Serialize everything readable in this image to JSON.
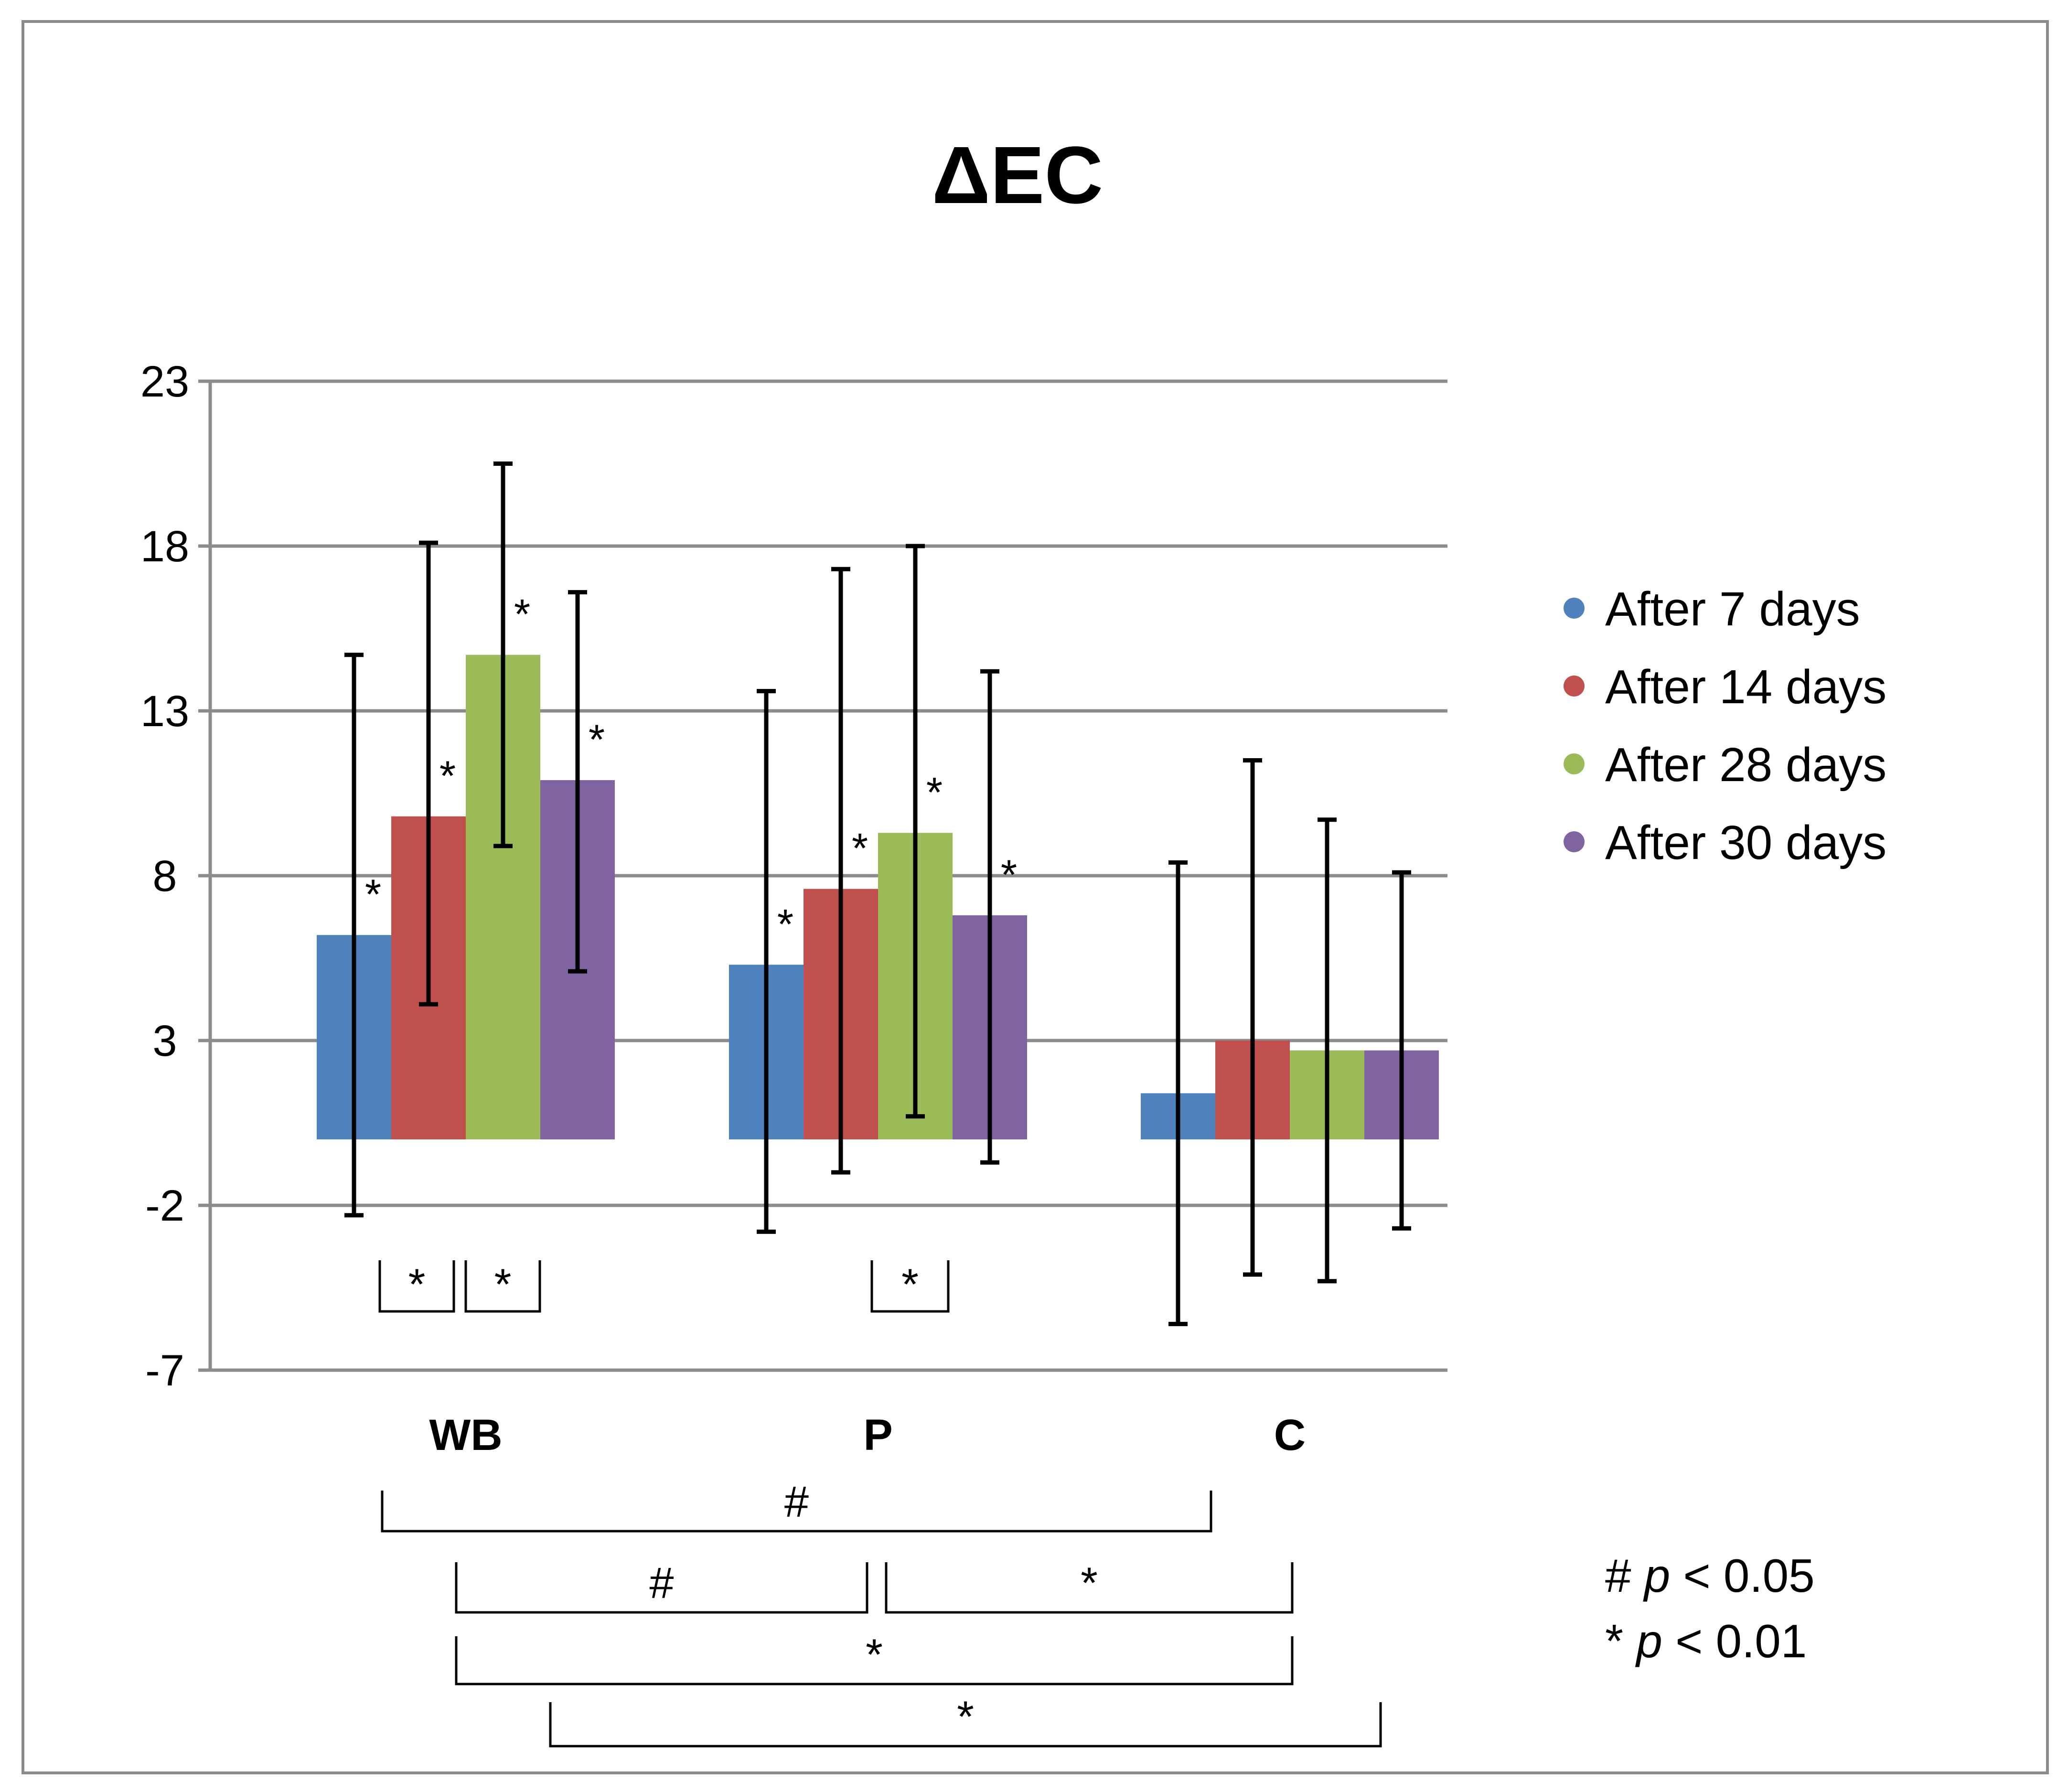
{
  "chart_data": {
    "type": "bar",
    "title": "ΔEC",
    "categories": [
      "WB",
      "P",
      "C"
    ],
    "ylim": [
      -7,
      23
    ],
    "yticks": [
      23,
      18,
      13,
      8,
      3,
      -2,
      -7
    ],
    "grid": true,
    "legend_position": "right",
    "series": [
      {
        "name": "After 7 days",
        "color": "#4F81BD",
        "values": [
          6.2,
          5.3,
          1.4
        ],
        "err_low": [
          -2.3,
          -2.8,
          -5.6
        ],
        "err_high": [
          14.7,
          13.6,
          8.4
        ],
        "sig": [
          "*",
          "*",
          ""
        ]
      },
      {
        "name": "After 14 days",
        "color": "#C0504D",
        "values": [
          9.8,
          7.6,
          3.0
        ],
        "err_low": [
          4.1,
          -1.0,
          -4.1
        ],
        "err_high": [
          18.1,
          17.3,
          11.5
        ],
        "sig": [
          "*",
          "*",
          ""
        ]
      },
      {
        "name": "After 28 days",
        "color": "#9BBB59",
        "values": [
          14.7,
          9.3,
          2.7
        ],
        "err_low": [
          8.9,
          0.7,
          -4.3
        ],
        "err_high": [
          20.5,
          18.0,
          9.7
        ],
        "sig": [
          "*",
          "*",
          ""
        ]
      },
      {
        "name": "After 30 days",
        "color": "#8064A2",
        "values": [
          10.9,
          6.8,
          2.7
        ],
        "err_low": [
          5.1,
          -0.7,
          -2.7
        ],
        "err_high": [
          16.6,
          14.2,
          8.1
        ],
        "sig": [
          "*",
          "*",
          ""
        ]
      }
    ],
    "within_group_brackets": [
      {
        "label": "*"
      },
      {
        "label": "*"
      },
      {
        "label": "*"
      }
    ],
    "between_group_brackets": [
      {
        "label": "#"
      },
      {
        "label": "#"
      },
      {
        "label": "*"
      },
      {
        "label": "*"
      },
      {
        "label": "*"
      }
    ],
    "significance_notes": [
      {
        "symbol": "#",
        "p": "p",
        "rest": "< 0.05"
      },
      {
        "symbol": "*",
        "p": "p",
        "rest": "< 0.01"
      }
    ]
  }
}
